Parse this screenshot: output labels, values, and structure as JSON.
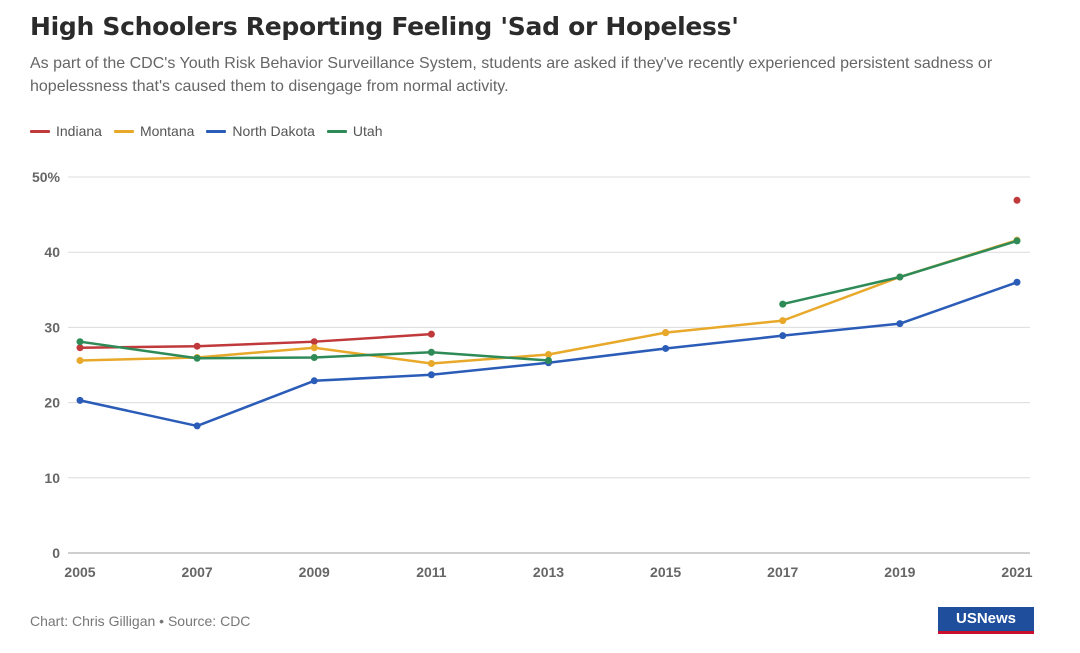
{
  "header": {
    "title": "High Schoolers Reporting Feeling 'Sad or Hopeless'",
    "subtitle": "As part of the CDC's Youth Risk Behavior Surveillance System, students are asked if they've recently experienced persistent sadness or hopelessness that's caused them to disengage from normal activity."
  },
  "footer": {
    "credit": "Chart: Chris Gilligan • Source: CDC",
    "logo": "USNews"
  },
  "chart_data": {
    "type": "line",
    "title": "High Schoolers Reporting Feeling 'Sad or Hopeless'",
    "xlabel": "",
    "ylabel": "",
    "x": [
      "2005",
      "2007",
      "2009",
      "2011",
      "2013",
      "2015",
      "2017",
      "2019",
      "2021"
    ],
    "ylim": [
      0,
      50
    ],
    "yticks": [
      0,
      10,
      20,
      30,
      40,
      50
    ],
    "ytick_labels": [
      "0",
      "10",
      "20",
      "30",
      "40",
      "50%"
    ],
    "grid": true,
    "legend_position": "top-left",
    "series": [
      {
        "name": "Indiana",
        "color": "#c0393b",
        "values": [
          27.3,
          27.5,
          28.1,
          29.1,
          null,
          29.3,
          null,
          null,
          46.9
        ]
      },
      {
        "name": "Montana",
        "color": "#e8a92a",
        "values": [
          25.6,
          26.0,
          27.3,
          25.2,
          26.4,
          29.3,
          30.9,
          36.7,
          41.6
        ]
      },
      {
        "name": "North Dakota",
        "color": "#2a5cb8",
        "values": [
          20.3,
          16.9,
          22.9,
          23.7,
          25.3,
          27.2,
          28.9,
          30.5,
          36.0
        ]
      },
      {
        "name": "Utah",
        "color": "#2e8b57",
        "values": [
          28.1,
          25.9,
          26.0,
          26.7,
          25.6,
          null,
          33.1,
          36.7,
          41.5
        ]
      }
    ]
  }
}
